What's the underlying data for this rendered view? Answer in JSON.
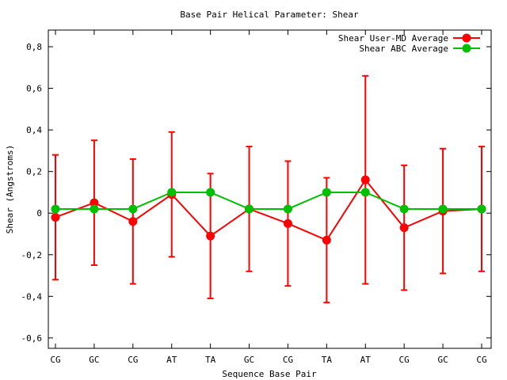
{
  "chart_data": {
    "type": "line",
    "title": "Base Pair Helical Parameter: Shear",
    "xlabel": "Sequence Base Pair",
    "ylabel": "Shear (Angstroms)",
    "categories": [
      "CG",
      "GC",
      "CG",
      "AT",
      "TA",
      "GC",
      "CG",
      "TA",
      "AT",
      "CG",
      "GC",
      "CG"
    ],
    "ylim": [
      -0.65,
      0.88
    ],
    "y_ticks": [
      -0.6,
      -0.4,
      -0.2,
      0,
      0.2,
      0.4,
      0.6,
      0.8
    ],
    "y_tick_labels": [
      "-0,6",
      "-0,4",
      "-0,2",
      "0",
      "0,2",
      "0,4",
      "0,6",
      "0,8"
    ],
    "grid": false,
    "legend_position": "top-right",
    "series": [
      {
        "name": "Shear User-MD Average",
        "color": "#ff0000",
        "values": [
          -0.02,
          0.05,
          -0.04,
          0.09,
          -0.11,
          0.02,
          -0.05,
          -0.13,
          0.16,
          -0.07,
          0.01,
          0.02
        ],
        "error_upper": [
          0.28,
          0.35,
          0.26,
          0.39,
          0.19,
          0.32,
          0.25,
          0.17,
          0.66,
          0.23,
          0.31,
          0.32
        ],
        "error_lower": [
          -0.32,
          -0.25,
          -0.34,
          -0.21,
          -0.41,
          -0.28,
          -0.35,
          -0.43,
          -0.34,
          -0.37,
          -0.29,
          -0.28
        ]
      },
      {
        "name": "Shear ABC Average",
        "color": "#00c000",
        "values": [
          0.02,
          0.02,
          0.02,
          0.1,
          0.1,
          0.02,
          0.02,
          0.1,
          0.1,
          0.02,
          0.02,
          0.02
        ]
      }
    ]
  }
}
